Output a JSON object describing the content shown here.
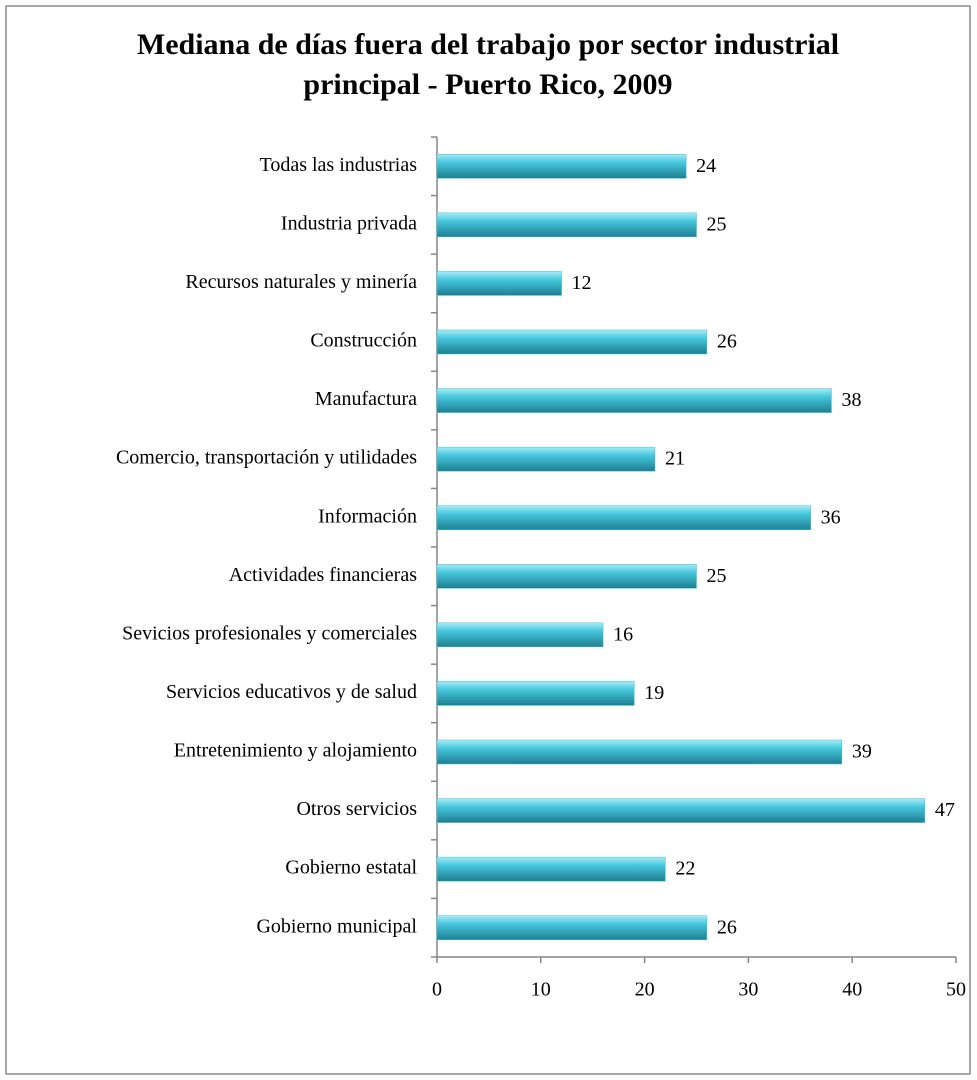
{
  "chart_data": {
    "type": "bar",
    "orientation": "horizontal",
    "title": [
      "Mediana de días fuera del trabajo por sector industrial",
      "principal - Puerto Rico, 2009"
    ],
    "categories": [
      "Todas las industrias",
      "Industria privada",
      "Recursos naturales y minería",
      "Construcción",
      "Manufactura",
      "Comercio, transportación y utilidades",
      "Información",
      "Actividades financieras",
      "Sevicios profesionales y comerciales",
      "Servicios educativos y de salud",
      "Entretenimiento y alojamiento",
      "Otros servicios",
      "Gobierno estatal",
      "Gobierno municipal"
    ],
    "values": [
      24,
      25,
      12,
      26,
      38,
      21,
      36,
      25,
      16,
      19,
      39,
      47,
      22,
      26
    ],
    "color": "#3fbfd6",
    "xlim": [
      0,
      50
    ],
    "xticks": [
      0,
      10,
      20,
      30,
      40,
      50
    ]
  }
}
